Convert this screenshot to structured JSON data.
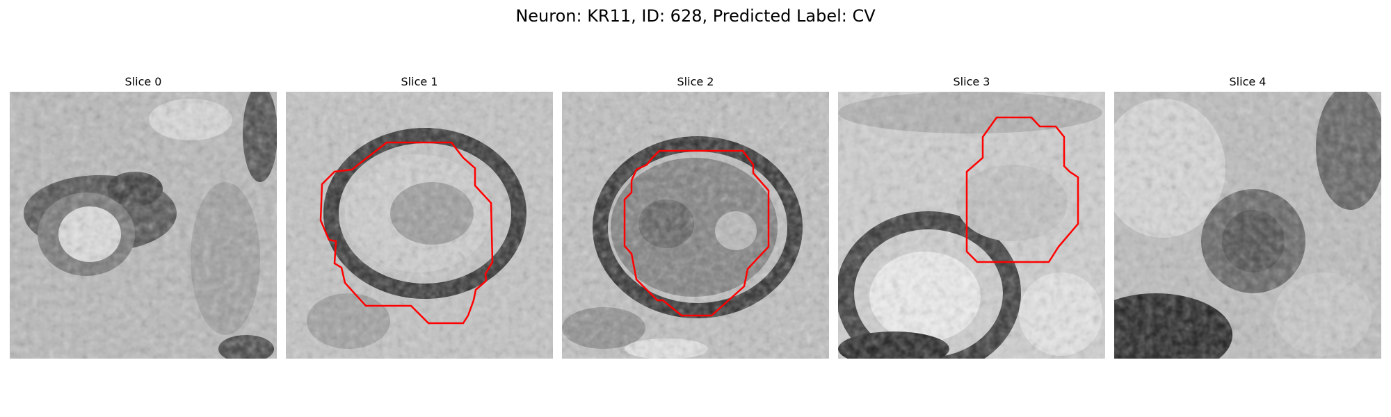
{
  "figure": {
    "title": "Neuron: KR11, ID: 628, Predicted Label: CV",
    "contour_color": "#ff0000"
  },
  "panels": [
    {
      "title": "Slice 0",
      "has_contour": false
    },
    {
      "title": "Slice 1",
      "has_contour": true
    },
    {
      "title": "Slice 2",
      "has_contour": true
    },
    {
      "title": "Slice 3",
      "has_contour": true
    },
    {
      "title": "Slice 4",
      "has_contour": false
    }
  ]
}
